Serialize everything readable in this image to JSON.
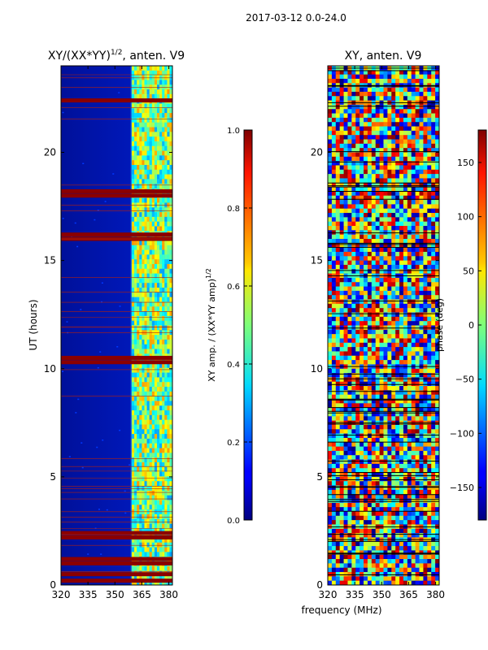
{
  "figure": {
    "suptitle": "2017-03-12 0.0-24.0",
    "common_xlabel": "frequency (MHz)"
  },
  "chart_data": [
    {
      "type": "heatmap",
      "title_main": "XY/(XX*YY)",
      "title_sup": "1/2",
      "title_tail": ", anten. V9",
      "xlabel": "",
      "ylabel": "UT (hours)",
      "xlim": [
        320,
        382
      ],
      "ylim": [
        0,
        24
      ],
      "xticks": [
        320,
        335,
        350,
        365,
        380
      ],
      "yticks": [
        0,
        5,
        10,
        15,
        20
      ],
      "colorbar": {
        "label_main": "XY amp. / (XX*YY amp)",
        "label_sup": "1/2",
        "range": [
          0.0,
          1.0
        ],
        "ticks": [
          "0.0",
          "0.2",
          "0.4",
          "0.6",
          "0.8",
          "1.0"
        ],
        "colormap": "jet"
      },
      "flag_bands_hours": [
        0.2,
        0.5,
        1.0,
        1.2,
        2.2,
        2.4,
        10.3,
        10.5,
        16.0,
        16.2,
        18.0,
        18.2,
        22.4
      ]
    },
    {
      "type": "heatmap",
      "title_main": "XY, anten. V9",
      "xlabel": "frequency (MHz)",
      "ylabel": "",
      "xlim": [
        320,
        382
      ],
      "ylim": [
        0,
        24
      ],
      "xticks": [
        320,
        335,
        350,
        365,
        380
      ],
      "yticks": [
        0,
        5,
        10,
        15,
        20
      ],
      "colorbar": {
        "label_main": "phase (deg)",
        "range": [
          -180,
          180
        ],
        "ticks": [
          "150",
          "100",
          "50",
          "0",
          "−50",
          "−100",
          "−150"
        ],
        "tick_values": [
          150,
          100,
          50,
          0,
          -50,
          -100,
          -150
        ],
        "colormap": "jet"
      }
    }
  ]
}
